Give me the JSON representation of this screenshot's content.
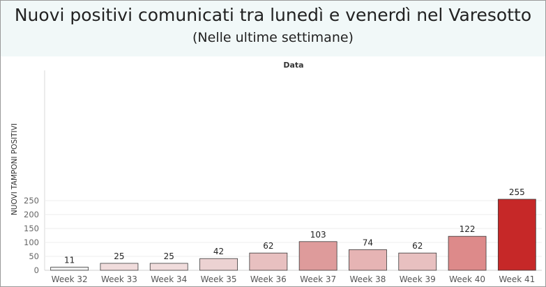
{
  "header": {
    "title": "Nuovi positivi comunicati tra lunedì e venerdì nel Varesotto",
    "subtitle": "(Nelle ultime settimane)"
  },
  "chart_data": {
    "type": "bar",
    "title": "Nuovi positivi comunicati tra lunedì e venerdì nel Varesotto",
    "subtitle": "(Nelle ultime settimane)",
    "xlabel": "Data",
    "ylabel": "NUOVI TAMPONI POSITIVI",
    "categories": [
      "Week 32",
      "Week 33",
      "Week 34",
      "Week 35",
      "Week 36",
      "Week 37",
      "Week 38",
      "Week 39",
      "Week 40",
      "Week 41"
    ],
    "values": [
      11,
      25,
      25,
      42,
      62,
      103,
      74,
      62,
      122,
      255
    ],
    "bar_colors": [
      "#efefef",
      "#f0dcdc",
      "#f0dcdc",
      "#ecd2d2",
      "#e8c0c0",
      "#de9b9b",
      "#e6b4b4",
      "#e8c0c0",
      "#dd8a8a",
      "#c62828"
    ],
    "ylim": [
      0,
      270
    ],
    "yticks": [
      0,
      50,
      100,
      150,
      200,
      250
    ],
    "grid": true,
    "legend": "none"
  }
}
